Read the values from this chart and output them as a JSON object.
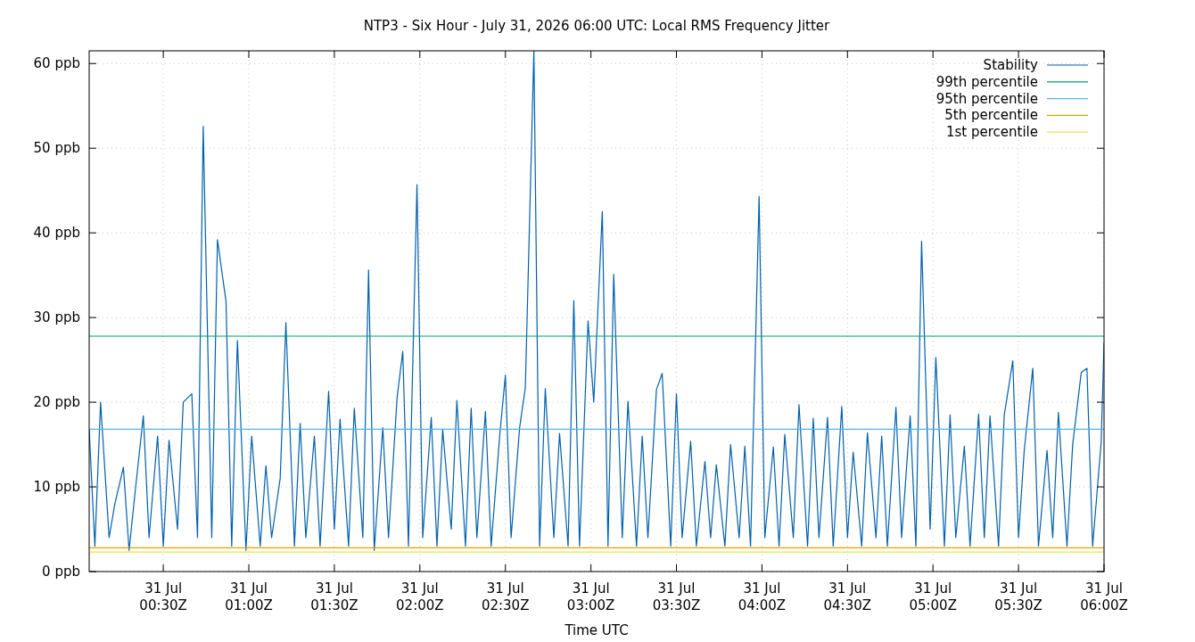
{
  "chart_data": {
    "type": "line",
    "title": "NTP3 - Six Hour - July 31, 2026 06:00 UTC: Local RMS Frequency Jitter",
    "xlabel": "Time UTC",
    "xlim": [
      "2026-07-31T00:04",
      "2026-07-31T06:00"
    ],
    "ylim": [
      0,
      61.5
    ],
    "xticks": [
      {
        "value": "2026-07-31T00:30",
        "label": "31 Jul\n00:30Z"
      },
      {
        "value": "2026-07-31T01:00",
        "label": "31 Jul\n01:00Z"
      },
      {
        "value": "2026-07-31T01:30",
        "label": "31 Jul\n01:30Z"
      },
      {
        "value": "2026-07-31T02:00",
        "label": "31 Jul\n02:00Z"
      },
      {
        "value": "2026-07-31T02:30",
        "label": "31 Jul\n02:30Z"
      },
      {
        "value": "2026-07-31T03:00",
        "label": "31 Jul\n03:00Z"
      },
      {
        "value": "2026-07-31T03:30",
        "label": "31 Jul\n03:30Z"
      },
      {
        "value": "2026-07-31T04:00",
        "label": "31 Jul\n04:00Z"
      },
      {
        "value": "2026-07-31T04:30",
        "label": "31 Jul\n04:30Z"
      },
      {
        "value": "2026-07-31T05:00",
        "label": "31 Jul\n05:00Z"
      },
      {
        "value": "2026-07-31T05:30",
        "label": "31 Jul\n05:30Z"
      },
      {
        "value": "2026-07-31T06:00",
        "label": "31 Jul\n06:00Z"
      }
    ],
    "yticks": [
      {
        "value": 0,
        "label": "0 ppb"
      },
      {
        "value": 10,
        "label": "10 ppb"
      },
      {
        "value": 20,
        "label": "20 ppb"
      },
      {
        "value": 30,
        "label": "30 ppb"
      },
      {
        "value": 40,
        "label": "40 ppb"
      },
      {
        "value": 50,
        "label": "50 ppb"
      },
      {
        "value": 60,
        "label": "60 ppb"
      }
    ],
    "grid": true,
    "legend": "top right",
    "marker": "none",
    "line_style": "solid",
    "series": [
      {
        "name": "Stability",
        "color": "#0060ad",
        "x": [
          "2026-07-31T00:04",
          "2026-07-31T00:06",
          "2026-07-31T00:08",
          "2026-07-31T00:11",
          "2026-07-31T00:13",
          "2026-07-31T00:16",
          "2026-07-31T00:18",
          "2026-07-31T00:20",
          "2026-07-31T00:23",
          "2026-07-31T00:25",
          "2026-07-31T00:28",
          "2026-07-31T00:30",
          "2026-07-31T00:32",
          "2026-07-31T00:35",
          "2026-07-31T00:37",
          "2026-07-31T00:40",
          "2026-07-31T00:42",
          "2026-07-31T00:44",
          "2026-07-31T00:47",
          "2026-07-31T00:49",
          "2026-07-31T00:52",
          "2026-07-31T00:54",
          "2026-07-31T00:56",
          "2026-07-31T00:59",
          "2026-07-31T01:01",
          "2026-07-31T01:04",
          "2026-07-31T01:06",
          "2026-07-31T01:08",
          "2026-07-31T01:11",
          "2026-07-31T01:13",
          "2026-07-31T01:16",
          "2026-07-31T01:18",
          "2026-07-31T01:20",
          "2026-07-31T01:23",
          "2026-07-31T01:25",
          "2026-07-31T01:28",
          "2026-07-31T01:30",
          "2026-07-31T01:32",
          "2026-07-31T01:35",
          "2026-07-31T01:37",
          "2026-07-31T01:40",
          "2026-07-31T01:42",
          "2026-07-31T01:44",
          "2026-07-31T01:47",
          "2026-07-31T01:49",
          "2026-07-31T01:52",
          "2026-07-31T01:54",
          "2026-07-31T01:56",
          "2026-07-31T01:59",
          "2026-07-31T02:01",
          "2026-07-31T02:04",
          "2026-07-31T02:06",
          "2026-07-31T02:08",
          "2026-07-31T02:11",
          "2026-07-31T02:13",
          "2026-07-31T02:16",
          "2026-07-31T02:18",
          "2026-07-31T02:20",
          "2026-07-31T02:23",
          "2026-07-31T02:25",
          "2026-07-31T02:28",
          "2026-07-31T02:30",
          "2026-07-31T02:32",
          "2026-07-31T02:35",
          "2026-07-31T02:37",
          "2026-07-31T02:40",
          "2026-07-31T02:42",
          "2026-07-31T02:44",
          "2026-07-31T02:47",
          "2026-07-31T02:49",
          "2026-07-31T02:52",
          "2026-07-31T02:54",
          "2026-07-31T02:56",
          "2026-07-31T02:59",
          "2026-07-31T03:01",
          "2026-07-31T03:04",
          "2026-07-31T03:06",
          "2026-07-31T03:08",
          "2026-07-31T03:11",
          "2026-07-31T03:13",
          "2026-07-31T03:16",
          "2026-07-31T03:18",
          "2026-07-31T03:20",
          "2026-07-31T03:23",
          "2026-07-31T03:25",
          "2026-07-31T03:28",
          "2026-07-31T03:30",
          "2026-07-31T03:32",
          "2026-07-31T03:35",
          "2026-07-31T03:37",
          "2026-07-31T03:40",
          "2026-07-31T03:42",
          "2026-07-31T03:44",
          "2026-07-31T03:47",
          "2026-07-31T03:49",
          "2026-07-31T03:52",
          "2026-07-31T03:54",
          "2026-07-31T03:56",
          "2026-07-31T03:59",
          "2026-07-31T04:01",
          "2026-07-31T04:04",
          "2026-07-31T04:06",
          "2026-07-31T04:08",
          "2026-07-31T04:11",
          "2026-07-31T04:13",
          "2026-07-31T04:16",
          "2026-07-31T04:18",
          "2026-07-31T04:20",
          "2026-07-31T04:23",
          "2026-07-31T04:25",
          "2026-07-31T04:28",
          "2026-07-31T04:30",
          "2026-07-31T04:32",
          "2026-07-31T04:35",
          "2026-07-31T04:37",
          "2026-07-31T04:40",
          "2026-07-31T04:42",
          "2026-07-31T04:44",
          "2026-07-31T04:47",
          "2026-07-31T04:49",
          "2026-07-31T04:52",
          "2026-07-31T04:54",
          "2026-07-31T04:56",
          "2026-07-31T04:59",
          "2026-07-31T05:01",
          "2026-07-31T05:04",
          "2026-07-31T05:06",
          "2026-07-31T05:08",
          "2026-07-31T05:11",
          "2026-07-31T05:13",
          "2026-07-31T05:16",
          "2026-07-31T05:18",
          "2026-07-31T05:20",
          "2026-07-31T05:23",
          "2026-07-31T05:25",
          "2026-07-31T05:28",
          "2026-07-31T05:30",
          "2026-07-31T05:32",
          "2026-07-31T05:35",
          "2026-07-31T05:37",
          "2026-07-31T05:40",
          "2026-07-31T05:42",
          "2026-07-31T05:44",
          "2026-07-31T05:47",
          "2026-07-31T05:49",
          "2026-07-31T05:52",
          "2026-07-31T05:54",
          "2026-07-31T05:56",
          "2026-07-31T05:59",
          "2026-07-31T06:00"
        ],
        "values": [
          16.8,
          3,
          20,
          4,
          8,
          12.3,
          2.5,
          9,
          18.4,
          4,
          16,
          3,
          15.5,
          5,
          20,
          21,
          4,
          52.6,
          4,
          39.2,
          31.9,
          3,
          27.3,
          2.5,
          16,
          3,
          12.5,
          4,
          11,
          29.4,
          3,
          17.5,
          4,
          16,
          3,
          21.3,
          5,
          18,
          3,
          19.3,
          4,
          35.6,
          2.5,
          17,
          4,
          20.5,
          26,
          3,
          45.7,
          4,
          18.2,
          3,
          16.8,
          5,
          20.2,
          3,
          19.3,
          4,
          18.9,
          3,
          16,
          23.2,
          4,
          17,
          21.7,
          61.5,
          3,
          21.6,
          4,
          16.3,
          3,
          32,
          3,
          29.6,
          20,
          42.5,
          3,
          35.1,
          4,
          20.1,
          3,
          16,
          4,
          21.5,
          23.4,
          3,
          21,
          4,
          15.4,
          3,
          13,
          4,
          12.6,
          3,
          15,
          4,
          14.8,
          3,
          44.3,
          4,
          14.7,
          3,
          16.2,
          4,
          19.7,
          3,
          18.1,
          4,
          18.2,
          3,
          19.5,
          4,
          14.1,
          3,
          16.4,
          4,
          16,
          3,
          19.4,
          4,
          18.4,
          3,
          39,
          5,
          25.3,
          3,
          18.5,
          4,
          14.8,
          3,
          18.6,
          4,
          18.4,
          3,
          18.5,
          24.9,
          4,
          14.3,
          24,
          3,
          14.3,
          4,
          18.8,
          3,
          15,
          23.5,
          24,
          3,
          15.3,
          27
        ]
      },
      {
        "name": "99th percentile",
        "color": "#009e73",
        "x": [
          "2026-07-31T00:04",
          "2026-07-31T06:00"
        ],
        "values": [
          27.8,
          27.8
        ]
      },
      {
        "name": "95th percentile",
        "color": "#56b4e9",
        "x": [
          "2026-07-31T00:04",
          "2026-07-31T06:00"
        ],
        "values": [
          16.8,
          16.8
        ]
      },
      {
        "name": "5th percentile",
        "color": "#e69f00",
        "x": [
          "2026-07-31T00:04",
          "2026-07-31T06:00"
        ],
        "values": [
          2.8,
          2.8
        ]
      },
      {
        "name": "1st percentile",
        "color": "#f0e442",
        "x": [
          "2026-07-31T00:04",
          "2026-07-31T06:00"
        ],
        "values": [
          2.3,
          2.3
        ]
      }
    ]
  }
}
